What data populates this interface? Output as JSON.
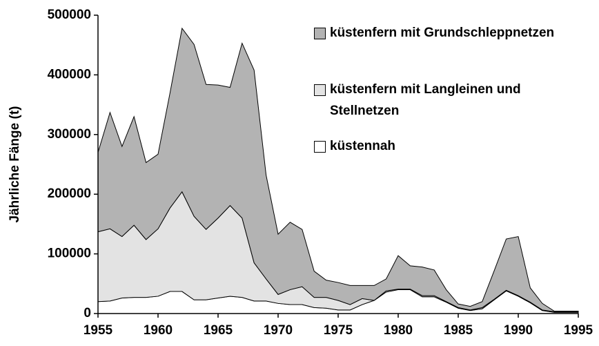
{
  "chart_data": {
    "type": "stacked_area",
    "y_label": "Jährliche Fänge (t)",
    "x": [
      1955,
      1956,
      1957,
      1958,
      1959,
      1960,
      1961,
      1962,
      1963,
      1964,
      1965,
      1966,
      1967,
      1968,
      1969,
      1970,
      1971,
      1972,
      1973,
      1974,
      1975,
      1976,
      1977,
      1978,
      1979,
      1980,
      1981,
      1982,
      1983,
      1984,
      1985,
      1986,
      1987,
      1988,
      1989,
      1990,
      1991,
      1992,
      1993,
      1994,
      1995
    ],
    "series": [
      {
        "name": "küstennah",
        "color": "#ffffff",
        "values": [
          20000,
          21000,
          26000,
          27000,
          27000,
          29000,
          37000,
          37000,
          23000,
          23000,
          26000,
          29000,
          27000,
          21000,
          21000,
          17000,
          15000,
          15000,
          10000,
          9000,
          6000,
          6000,
          15000,
          22000,
          36000,
          40000,
          40000,
          28000,
          28000,
          19000,
          9000,
          5000,
          8000,
          23000,
          38000,
          29000,
          18000,
          5000,
          2000,
          2000,
          2000
        ]
      },
      {
        "name": "küstenfern mit Langleinen und Stellnetzen",
        "color": "#e3e3e3",
        "values": [
          117000,
          121000,
          103000,
          121000,
          97000,
          113000,
          140000,
          167000,
          140000,
          118000,
          134000,
          152000,
          133000,
          64000,
          37000,
          15000,
          25000,
          30000,
          17000,
          18000,
          16000,
          9000,
          10000,
          0,
          2000,
          1000,
          1000,
          2000,
          2000,
          1000,
          1000,
          1000,
          2000,
          1000,
          1000,
          1000,
          1000,
          1000,
          1000,
          1000,
          1000
        ]
      },
      {
        "name": "küstenfern mit Grundschleppnetzen",
        "color": "#b3b3b3",
        "values": [
          133000,
          195000,
          151000,
          182000,
          129000,
          125000,
          193000,
          274000,
          288000,
          243000,
          223000,
          198000,
          293000,
          323000,
          174000,
          101000,
          113000,
          96000,
          44000,
          29000,
          30000,
          32000,
          22000,
          25000,
          20000,
          56000,
          39000,
          48000,
          43000,
          20000,
          6000,
          6000,
          10000,
          48000,
          86000,
          99000,
          24000,
          11000,
          1000,
          1000,
          1000
        ]
      }
    ],
    "xlim": [
      1955,
      1995
    ],
    "xticks": [
      1955,
      1960,
      1965,
      1970,
      1975,
      1980,
      1985,
      1990,
      1995
    ],
    "ylim": [
      0,
      500000
    ],
    "yticks": [
      0,
      100000,
      200000,
      300000,
      400000,
      500000
    ],
    "legend": "upper right"
  }
}
